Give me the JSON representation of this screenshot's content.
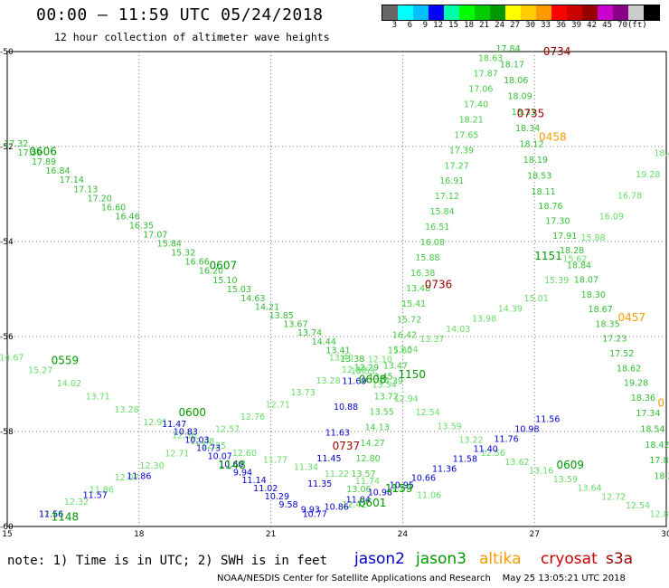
{
  "header": {
    "title": "00:00 – 11:59 UTC 05/24/2018",
    "subtitle": "12 hour collection of altimeter wave heights"
  },
  "colorbar": {
    "colors": [
      "#666666",
      "#00ffff",
      "#00c0ff",
      "#0000ff",
      "#00ffaa",
      "#00ff00",
      "#00cc00",
      "#009900",
      "#ffff00",
      "#ffcc00",
      "#ff9900",
      "#ff0000",
      "#cc0000",
      "#990000",
      "#cc00cc",
      "#880088",
      "#cccccc",
      "#000000"
    ],
    "labels": [
      "3",
      "6",
      "9",
      "12",
      "15",
      "18",
      "21",
      "24",
      "27",
      "30",
      "33",
      "36",
      "39",
      "42",
      "45",
      "70",
      "(ft)"
    ]
  },
  "axes": {
    "lat_labels": [
      "-50",
      "-52",
      "-54",
      "-56",
      "-58",
      "-60"
    ],
    "lon_labels": [
      "15",
      "18",
      "21",
      "24",
      "27",
      "30"
    ],
    "lon_range": [
      15,
      30
    ],
    "lat_range": [
      -60,
      -50
    ],
    "grid": true
  },
  "note": "note: 1) Time is in UTC; 2) SWH is in feet",
  "legend": [
    {
      "name": "jason2",
      "color": "#0000cc"
    },
    {
      "name": "jason3",
      "color": "#009900"
    },
    {
      "name": "altika",
      "color": "#ff9900"
    },
    {
      "name": "cryosat",
      "color": "#cc0000"
    },
    {
      "name": "s3a",
      "color": "#990000"
    }
  ],
  "credit": "NOAA/NESDIS Center for Satellite Applications and Research    May 25 13:05:21 UTC 2018",
  "chart_data": {
    "type": "scatter",
    "title": "12 hour collection of altimeter wave heights",
    "units": "ft",
    "time_labels": [
      {
        "text": "0606",
        "lon": 15.5,
        "lat": -52.1,
        "color": "#009900"
      },
      {
        "text": "0607",
        "lon": 19.6,
        "lat": -54.5,
        "color": "#009900"
      },
      {
        "text": "0559",
        "lon": 16.0,
        "lat": -56.5,
        "color": "#009900"
      },
      {
        "text": "0608",
        "lon": 23.0,
        "lat": -56.9,
        "color": "#009900"
      },
      {
        "text": "1150",
        "lon": 23.9,
        "lat": -56.8,
        "color": "#009900"
      },
      {
        "text": "0600",
        "lon": 18.9,
        "lat": -57.6,
        "color": "#009900"
      },
      {
        "text": "1148",
        "lon": 19.8,
        "lat": -58.7,
        "color": "#009900"
      },
      {
        "text": "1148",
        "lon": 16.0,
        "lat": -59.8,
        "color": "#009900"
      },
      {
        "text": "0601",
        "lon": 23.0,
        "lat": -59.5,
        "color": "#009900"
      },
      {
        "text": "1159",
        "lon": 23.6,
        "lat": -59.2,
        "color": "#009900"
      },
      {
        "text": "0609",
        "lon": 27.5,
        "lat": -58.7,
        "color": "#009900"
      },
      {
        "text": "1151",
        "lon": 27.0,
        "lat": -54.3,
        "color": "#009900"
      },
      {
        "text": "0734",
        "lon": 27.2,
        "lat": -50.0,
        "color": "#990000"
      },
      {
        "text": "0735",
        "lon": 26.6,
        "lat": -51.3,
        "color": "#990000"
      },
      {
        "text": "0736",
        "lon": 24.5,
        "lat": -54.9,
        "color": "#990000"
      },
      {
        "text": "0737",
        "lon": 22.4,
        "lat": -58.3,
        "color": "#990000"
      },
      {
        "text": "0458",
        "lon": 27.1,
        "lat": -51.8,
        "color": "#ff9900"
      },
      {
        "text": "0457",
        "lon": 28.9,
        "lat": -55.6,
        "color": "#ff9900"
      },
      {
        "text": "0",
        "lon": 30.0,
        "lat": -57.4,
        "color": "#ff9900"
      }
    ],
    "series": [
      {
        "name": "jason3",
        "color": "#33bb33",
        "track": [
          [
            15.2,
            -52.0
          ],
          [
            20.5,
            -55.2
          ],
          [
            23.5,
            -56.9
          ]
        ],
        "values": [
          "17.32",
          "17.59",
          "17.89",
          "16.84",
          "17.14",
          "17.13",
          "17.20",
          "16.60",
          "16.46",
          "16.35",
          "17.07",
          "15.84",
          "15.32",
          "16.66",
          "16.20",
          "15.10",
          "15.03",
          "14.63",
          "14.21",
          "13.85",
          "13.67",
          "13.74",
          "14.44",
          "13.41",
          "13.38",
          "12.29",
          "13.45"
        ]
      },
      {
        "name": "jason3",
        "color": "#66dd66",
        "track": [
          [
            15.1,
            -56.5
          ],
          [
            19.4,
            -58.3
          ],
          [
            24.6,
            -59.4
          ]
        ],
        "values": [
          "14.67",
          "15.27",
          "14.02",
          "13.71",
          "13.28",
          "12.91",
          "12.36",
          "12.25",
          "12.60",
          "11.77",
          "11.34",
          "11.22",
          "11.74",
          "11.27",
          "11.06"
        ]
      },
      {
        "name": "jason3",
        "color": "#44cc44",
        "track": [
          [
            22.9,
            -59.6
          ],
          [
            24.5,
            -54.6
          ],
          [
            26.0,
            -50.2
          ]
        ],
        "values": [
          "12.42",
          "13.06",
          "13.57",
          "12.80",
          "14.27",
          "14.13",
          "13.55",
          "13.72",
          "14.39",
          "13.47",
          "15.60",
          "16.42",
          "15.72",
          "15.41",
          "13.48",
          "16.38",
          "15.88",
          "16.08",
          "16.51",
          "15.84",
          "17.12",
          "16.91",
          "17.27",
          "17.39",
          "17.65",
          "18.21",
          "17.40",
          "17.06",
          "17.87",
          "18.63"
        ]
      },
      {
        "name": "jason3",
        "color": "#33bb33",
        "track": [
          [
            26.4,
            -50.0
          ],
          [
            27.2,
            -53.0
          ],
          [
            29.5,
            -57.4
          ],
          [
            30.0,
            -59.0
          ]
        ],
        "values": [
          "17.84",
          "18.17",
          "18.06",
          "18.09",
          "18.33",
          "18.34",
          "18.12",
          "18.19",
          "18.53",
          "18.11",
          "18.76",
          "17.30",
          "17.91",
          "18.28",
          "18.84",
          "18.07",
          "18.30",
          "18.67",
          "18.35",
          "17.23",
          "17.52",
          "18.62",
          "19.28",
          "18.36",
          "17.34",
          "18.54",
          "18.42",
          "17.85",
          "18.23"
        ]
      },
      {
        "name": "jason3",
        "color": "#66dd66",
        "track": [
          [
            16.0,
            -59.8
          ],
          [
            22.5,
            -56.9
          ],
          [
            27.2,
            -55.2
          ],
          [
            30.0,
            -52.2
          ]
        ],
        "values": [
          "12.66",
          "12.32",
          "11.86",
          "12.07",
          "12.30",
          "12.71",
          "12.48",
          "12.57",
          "12.76",
          "12.71",
          "13.73",
          "13.28",
          "12.88",
          "12.10",
          "13.54",
          "13.37",
          "14.03",
          "13.98",
          "14.39",
          "15.01",
          "15.39",
          "15.62",
          "15.88",
          "16.09",
          "16.78",
          "19.28",
          "18.40"
        ]
      },
      {
        "name": "jason3",
        "color": "#66dd66",
        "track": [
          [
            22.6,
            -56.5
          ],
          [
            26.0,
            -58.5
          ],
          [
            29.9,
            -59.8
          ]
        ],
        "values": [
          "13.40",
          "13.53",
          "13.54",
          "12.94",
          "12.54",
          "13.59",
          "13.22",
          "12.56",
          "13.62",
          "13.16",
          "13.59",
          "13.64",
          "12.72",
          "12.54",
          "12.88"
        ]
      },
      {
        "name": "jason2",
        "color": "#0000cc",
        "track": [
          [
            18.8,
            -57.9
          ],
          [
            21.4,
            -59.6
          ]
        ],
        "values": [
          "11.47",
          "10.83",
          "10.03",
          "10.73",
          "10.07",
          "10.60",
          "9.94",
          "11.14",
          "11.02",
          "10.29",
          "9.58"
        ]
      },
      {
        "name": "jason2",
        "color": "#0000cc",
        "track": [
          [
            22.9,
            -57.0
          ],
          [
            22.3,
            -58.7
          ],
          [
            21.9,
            -59.7
          ]
        ],
        "values": [
          "11.69",
          "10.88",
          "11.63",
          "11.45",
          "11.35",
          "9.93"
        ]
      },
      {
        "name": "jason2",
        "color": "#0000cc",
        "track": [
          [
            16.0,
            -59.8
          ],
          [
            18.0,
            -59.0
          ]
        ],
        "values": [
          "11.56",
          "11.57",
          "11.86"
        ]
      },
      {
        "name": "jason2",
        "color": "#0000cc",
        "track": [
          [
            22.0,
            -59.8
          ],
          [
            24.6,
            -59.0
          ],
          [
            27.3,
            -57.8
          ]
        ],
        "values": [
          "10.77",
          "10.86",
          "11.04",
          "10.98",
          "10.95",
          "10.66",
          "11.36",
          "11.58",
          "11.40",
          "11.76",
          "10.98",
          "11.56"
        ]
      }
    ]
  }
}
